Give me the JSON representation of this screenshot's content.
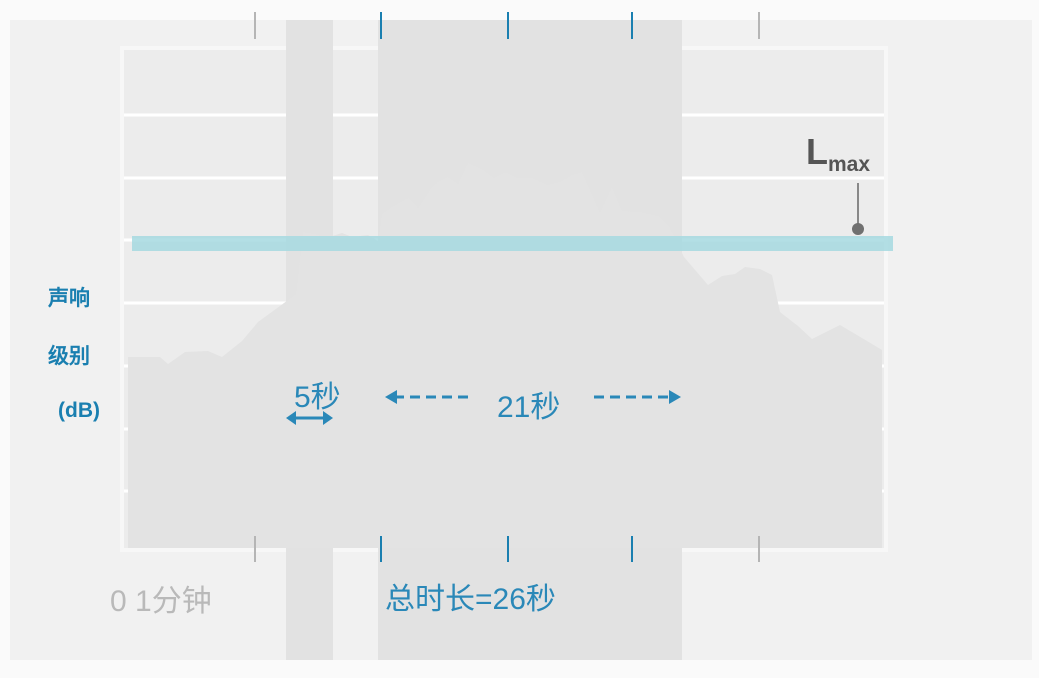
{
  "y_axis": {
    "line1": "声响",
    "line2": "级别",
    "line3": "(dB)"
  },
  "lmax": {
    "main": "L",
    "sub": "max"
  },
  "segments": [
    {
      "label": "5秒"
    },
    {
      "label": "21秒"
    }
  ],
  "footer": {
    "left_label": "0 1分钟",
    "right_label": "总时长=26秒"
  },
  "colors": {
    "accent_blue": "#1a7fb0",
    "threshold_band": "#a6d9e0",
    "exceedance_top": "#d4623c",
    "exceedance_mid": "#e9a83a",
    "exceedance_bottom": "#fdee33",
    "background_signal": "#e3e3e3"
  }
}
